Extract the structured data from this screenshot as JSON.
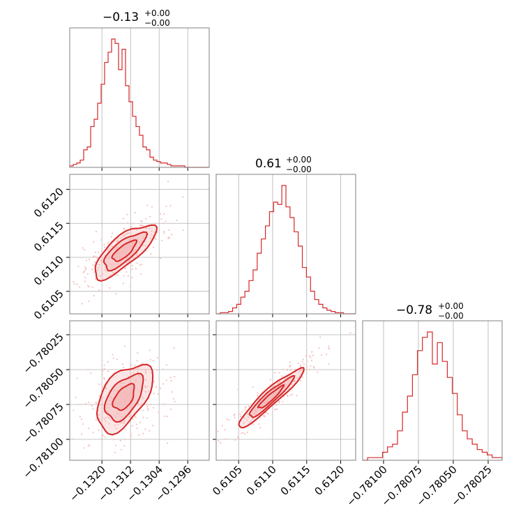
{
  "colors": {
    "accent": "#d62728",
    "accent_fill": "#f4b6b6",
    "scatter": "#f5c1c1",
    "grid": "#b0b0b0",
    "frame": "#808080"
  },
  "titles": [
    {
      "main": "−0.13",
      "sup": "+0.00",
      "sub": "−0.00"
    },
    {
      "main": "0.61",
      "sup": "+0.00",
      "sub": "−0.00"
    },
    {
      "main": "−0.78",
      "sup": "+0.00",
      "sub": "−0.00"
    }
  ],
  "chart_data": {
    "type": "corner",
    "parameters": [
      {
        "xlim": [
          -0.1329,
          -0.129
        ],
        "ticks": [
          -0.132,
          -0.1312,
          -0.1304,
          -0.1296
        ],
        "tick_labels": [
          "−0.1320",
          "−0.1312",
          "−0.1304",
          "−0.1296"
        ]
      },
      {
        "xlim": [
          0.61017,
          0.61222
        ],
        "ticks": [
          0.6105,
          0.611,
          0.6115,
          0.612
        ],
        "tick_labels": [
          "0.6105",
          "0.6110",
          "0.6115",
          "0.6120"
        ]
      },
      {
        "xlim": [
          -0.78115,
          -0.78015
        ],
        "ticks": [
          -0.781,
          -0.78075,
          -0.7805,
          -0.78025
        ],
        "tick_labels": [
          "−0.78100",
          "−0.78075",
          "−0.78050",
          "−0.78025"
        ]
      }
    ],
    "histograms": [
      {
        "parameter": 0,
        "counts": [
          1,
          2,
          3,
          5,
          12,
          14,
          28,
          33,
          44,
          57,
          72,
          79,
          88,
          85,
          67,
          81,
          56,
          45,
          35,
          28,
          22,
          14,
          12,
          7,
          5,
          4,
          3,
          3,
          2,
          1,
          1,
          1,
          1,
          0,
          0,
          0,
          0,
          0,
          0,
          0
        ]
      },
      {
        "parameter": 1,
        "counts": [
          0,
          1,
          1,
          2,
          5,
          8,
          14,
          19,
          28,
          37,
          51,
          63,
          74,
          86,
          94,
          92,
          108,
          90,
          81,
          69,
          57,
          39,
          31,
          19,
          12,
          8,
          5,
          3,
          2,
          1,
          1,
          0,
          0,
          0
        ]
      },
      {
        "parameter": 2,
        "counts": [
          0,
          1,
          1,
          1,
          3,
          5,
          6,
          11,
          18,
          24,
          32,
          41,
          46,
          48,
          36,
          44,
          37,
          31,
          25,
          17,
          11,
          8,
          6,
          4,
          3,
          2,
          1,
          1
        ]
      }
    ],
    "pairs": [
      {
        "x": 0,
        "y": 1,
        "correlation": 0.82
      },
      {
        "x": 0,
        "y": 2,
        "correlation": 0.55
      },
      {
        "x": 1,
        "y": 2,
        "correlation": 0.97
      }
    ],
    "grid": true,
    "contour_levels": 3
  }
}
